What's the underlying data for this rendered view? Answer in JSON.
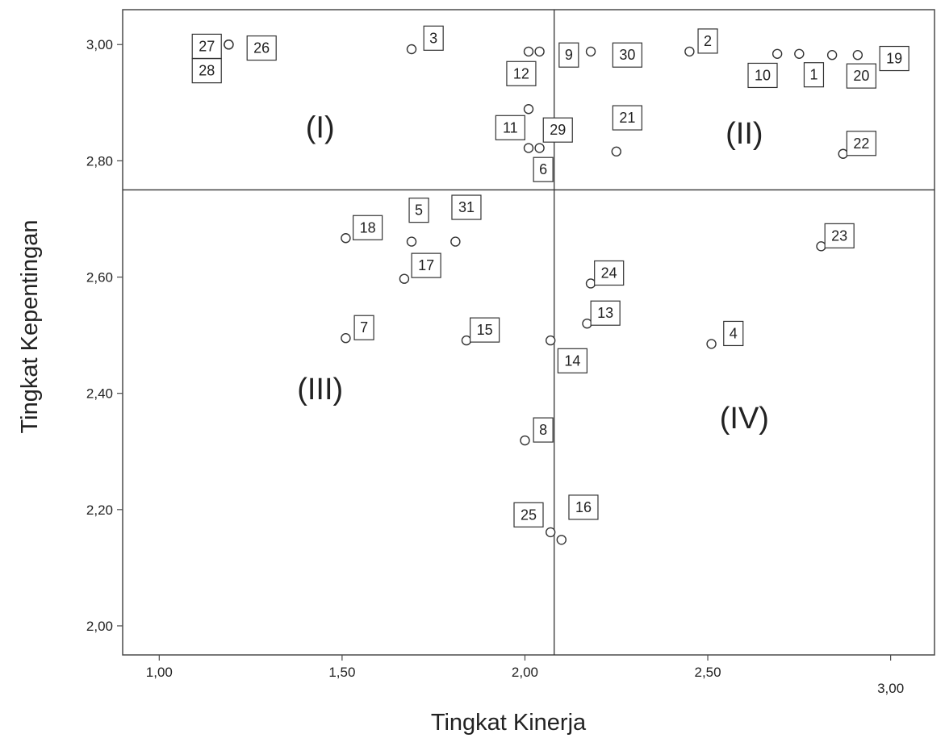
{
  "chart_data": {
    "type": "scatter",
    "xlabel": "Tingkat Kinerja",
    "ylabel": "Tingkat Kepentingan",
    "xlim": [
      0.9,
      3.12
    ],
    "ylim": [
      1.95,
      3.06
    ],
    "x_ticks": [
      1.0,
      1.5,
      2.0,
      2.5,
      3.0
    ],
    "x_tick_labels": [
      "1,00",
      "1,50",
      "2,00",
      "2,50",
      "3,00"
    ],
    "y_ticks": [
      2.0,
      2.2,
      2.4,
      2.6,
      2.8,
      3.0
    ],
    "y_tick_labels": [
      "2,00",
      "2,20",
      "2,40",
      "2,60",
      "2,80",
      "3,00"
    ],
    "grid": false,
    "reference_lines": {
      "x": 2.08,
      "y": 2.75
    },
    "quadrants": [
      {
        "label": "(I)",
        "x": 1.44,
        "y": 2.84
      },
      {
        "label": "(II)",
        "x": 2.6,
        "y": 2.83
      },
      {
        "label": "(III)",
        "x": 1.44,
        "y": 2.39
      },
      {
        "label": "(IV)",
        "x": 2.6,
        "y": 2.34
      }
    ],
    "points": [
      {
        "label": "1",
        "x": 2.75,
        "y": 2.984,
        "lx": 2.79,
        "ly": 2.948
      },
      {
        "label": "2",
        "x": 2.45,
        "y": 2.988,
        "lx": 2.5,
        "ly": 3.006
      },
      {
        "label": "3",
        "x": 1.69,
        "y": 2.992,
        "lx": 1.75,
        "ly": 3.011
      },
      {
        "label": "4",
        "x": 2.51,
        "y": 2.485,
        "lx": 2.57,
        "ly": 2.503
      },
      {
        "label": "5",
        "x": 1.69,
        "y": 2.661,
        "lx": 1.71,
        "ly": 2.715
      },
      {
        "label": "6",
        "x": 2.01,
        "y": 2.822,
        "lx": 2.05,
        "ly": 2.785
      },
      {
        "label": "7",
        "x": 1.51,
        "y": 2.495,
        "lx": 1.56,
        "ly": 2.513
      },
      {
        "label": "8",
        "x": 2.0,
        "y": 2.319,
        "lx": 2.05,
        "ly": 2.337
      },
      {
        "label": "9",
        "x": 2.04,
        "y": 2.988,
        "lx": 2.12,
        "ly": 2.982
      },
      {
        "label": "10",
        "x": 2.69,
        "y": 2.984,
        "lx": 2.65,
        "ly": 2.947
      },
      {
        "label": "11",
        "x": 2.01,
        "y": 2.889,
        "lx": 1.96,
        "ly": 2.857
      },
      {
        "label": "12",
        "x": 2.01,
        "y": 2.988,
        "lx": 1.99,
        "ly": 2.95
      },
      {
        "label": "13",
        "x": 2.17,
        "y": 2.52,
        "lx": 2.22,
        "ly": 2.538
      },
      {
        "label": "14",
        "x": 2.07,
        "y": 2.491,
        "lx": 2.13,
        "ly": 2.456
      },
      {
        "label": "15",
        "x": 1.84,
        "y": 2.491,
        "lx": 1.89,
        "ly": 2.509
      },
      {
        "label": "16",
        "x": 2.1,
        "y": 2.148,
        "lx": 2.16,
        "ly": 2.204
      },
      {
        "label": "17",
        "x": 1.67,
        "y": 2.597,
        "lx": 1.73,
        "ly": 2.62
      },
      {
        "label": "18",
        "x": 1.51,
        "y": 2.667,
        "lx": 1.57,
        "ly": 2.685
      },
      {
        "label": "19",
        "x": 2.91,
        "y": 2.982,
        "lx": 3.01,
        "ly": 2.976
      },
      {
        "label": "20",
        "x": 2.84,
        "y": 2.982,
        "lx": 2.92,
        "ly": 2.946
      },
      {
        "label": "21",
        "x": 2.25,
        "y": 2.816,
        "lx": 2.28,
        "ly": 2.874
      },
      {
        "label": "22",
        "x": 2.87,
        "y": 2.812,
        "lx": 2.92,
        "ly": 2.83
      },
      {
        "label": "23",
        "x": 2.81,
        "y": 2.653,
        "lx": 2.86,
        "ly": 2.671
      },
      {
        "label": "24",
        "x": 2.18,
        "y": 2.589,
        "lx": 2.23,
        "ly": 2.607
      },
      {
        "label": "25",
        "x": 2.07,
        "y": 2.161,
        "lx": 2.01,
        "ly": 2.191
      },
      {
        "label": "26",
        "x": 1.19,
        "y": 3.0,
        "lx": 1.28,
        "ly": 2.994
      },
      {
        "label": "27",
        "x": 1.19,
        "y": 3.0,
        "lx": 1.13,
        "ly": 2.997
      },
      {
        "label": "28",
        "x": 1.19,
        "y": 3.0,
        "lx": 1.13,
        "ly": 2.955
      },
      {
        "label": "29",
        "x": 2.04,
        "y": 2.822,
        "lx": 2.09,
        "ly": 2.853
      },
      {
        "label": "30",
        "x": 2.18,
        "y": 2.988,
        "lx": 2.28,
        "ly": 2.982
      },
      {
        "label": "31",
        "x": 1.81,
        "y": 2.661,
        "lx": 1.84,
        "ly": 2.72
      }
    ]
  }
}
